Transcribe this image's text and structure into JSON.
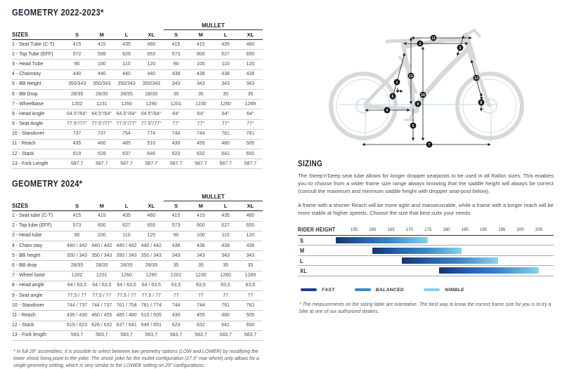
{
  "tables": [
    {
      "title": "GEOMETRY 2022-2023*",
      "mullet_label": "MULLET",
      "sizes_header": "SIZES",
      "size_cols": [
        "S",
        "M",
        "L",
        "XL",
        "S",
        "M",
        "L",
        "XL"
      ],
      "rows": [
        {
          "label": "1 - Seat Tube (C-T)",
          "values": [
            "415",
            "415",
            "435",
            "460",
            "415",
            "415",
            "435",
            "460"
          ]
        },
        {
          "label": "2 - Top Tube (EFF)",
          "values": [
            "572",
            "599",
            "626",
            "653",
            "573",
            "600",
            "627",
            "655"
          ]
        },
        {
          "label": "3 - Head Tube",
          "values": [
            "90",
            "100",
            "110",
            "120",
            "90",
            "100",
            "110",
            "120"
          ]
        },
        {
          "label": "4 - Chainstay",
          "values": [
            "440",
            "440",
            "440",
            "440",
            "438",
            "438",
            "438",
            "438"
          ]
        },
        {
          "label": "5 - BB Height",
          "values": [
            "350/343",
            "350/343",
            "350/343",
            "350/343",
            "343",
            "343",
            "343",
            "343"
          ]
        },
        {
          "label": "6 - BB Drop",
          "values": [
            "28/35",
            "28/35",
            "28/35",
            "28/35",
            "35",
            "35",
            "35",
            "35"
          ]
        },
        {
          "label": "7 - Wheelbase",
          "values": [
            "1202",
            "1231",
            "1260",
            "1290",
            "1201",
            "1230",
            "1260",
            "1289"
          ]
        },
        {
          "label": "8 - Head Angle",
          "values": [
            "64.5°/64°",
            "64.5°/64°",
            "64.5°/64°",
            "64.5°/64°",
            "64°",
            "64°",
            "64°",
            "64°"
          ]
        },
        {
          "label": "9 - Seat Angle",
          "values": [
            "77.5°/77°",
            "77.5°/77°",
            "77.5°/77°",
            "77.5°/77°",
            "77°",
            "77°",
            "77°",
            "77°"
          ]
        },
        {
          "label": "10 - Standover",
          "values": [
            "737",
            "737",
            "754",
            "774",
            "744",
            "744",
            "761",
            "781"
          ]
        },
        {
          "label": "11 - Reach",
          "values": [
            "435",
            "460",
            "485",
            "510",
            "430",
            "455",
            "480",
            "505"
          ]
        },
        {
          "label": "12 - Stack",
          "values": [
            "619",
            "628",
            "637",
            "646",
            "623",
            "632",
            "641",
            "650"
          ]
        },
        {
          "label": "13 - Fork Length",
          "values": [
            "587.7",
            "587.7",
            "587.7",
            "587.7",
            "587.7",
            "587.7",
            "587.7",
            "587.7"
          ]
        }
      ]
    },
    {
      "title": "GEOMETRY 2024*",
      "mullet_label": "MULLET",
      "sizes_header": "SIZES",
      "size_cols": [
        "S",
        "M",
        "L",
        "XL",
        "S",
        "M",
        "L",
        "XL"
      ],
      "rows": [
        {
          "label": "1 - Seat tube (C-T)",
          "values": [
            "415",
            "415",
            "435",
            "460",
            "415",
            "415",
            "435",
            "460"
          ]
        },
        {
          "label": "2 - Top tube (EFF)",
          "values": [
            "573",
            "600",
            "627",
            "655",
            "573",
            "600",
            "627",
            "655"
          ]
        },
        {
          "label": "3 - Head tube",
          "values": [
            "90",
            "100",
            "110",
            "120",
            "90",
            "100",
            "110",
            "120"
          ]
        },
        {
          "label": "4 - Chain stay",
          "values": [
            "440 / 442",
            "440 / 442",
            "440 / 442",
            "440 / 442",
            "438",
            "438",
            "438",
            "438"
          ]
        },
        {
          "label": "5 - BB height",
          "values": [
            "350 / 343",
            "350 / 343",
            "350 / 343",
            "350 / 343",
            "343",
            "343",
            "343",
            "343"
          ]
        },
        {
          "label": "6 - BB drop",
          "values": [
            "28/35",
            "28/35",
            "28/35",
            "28/35",
            "35",
            "35",
            "35",
            "35"
          ]
        },
        {
          "label": "7 - Wheel base",
          "values": [
            "1202",
            "1231",
            "1260",
            "1290",
            "1201",
            "1230",
            "1260",
            "1289"
          ]
        },
        {
          "label": "8 - Head angle",
          "values": [
            "64 / 63,5",
            "64 / 63,5",
            "64 / 63,5",
            "64 / 63,5",
            "63,5",
            "63,5",
            "63,5",
            "63,5"
          ]
        },
        {
          "label": "9 - Seat angle",
          "values": [
            "77,5 / 77",
            "77,5 / 77",
            "77,5 / 77",
            "77,5 / 77",
            "77",
            "77",
            "77",
            "77"
          ]
        },
        {
          "label": "10 - Standover",
          "values": [
            "744 / 737",
            "744 / 737",
            "761 / 754",
            "781 / 774",
            "744",
            "744",
            "761",
            "781"
          ]
        },
        {
          "label": "11 - Reach",
          "values": [
            "435 / 430",
            "460 / 455",
            "485 / 480",
            "510 / 505",
            "430",
            "455",
            "480",
            "505"
          ]
        },
        {
          "label": "12 - Stack",
          "values": [
            "619 / 623",
            "628 / 632",
            "637 / 641",
            "646 / 651",
            "623",
            "632",
            "641",
            "650"
          ]
        },
        {
          "label": "13 - Fork length",
          "values": [
            "583,7",
            "583,7",
            "583,7",
            "583,7",
            "583,7",
            "583,7",
            "583,7",
            "583,7"
          ]
        }
      ]
    }
  ],
  "footnote_left": "* In full 29\" assemblies, it is possible to select between two geometry options (LOW and LOWER) by modifying the lower shock fixing point to the yoke. The shock yoke for the mullet configuration (27.5\" rear wheel) only allows for a single geometry setting, which is very similar to the LOWER setting on 29\" configurations.",
  "sizing": {
    "heading": "SIZING",
    "paragraphs": [
      "The Steep'n'Deep seat tube allows for longer dropper seatposts to be used in all Rallon sizes. This enables you to choose from a wider frame size range always knowing that the saddle height will always be correct (consult the maximum and minimum saddle height with dropper seat-post below).",
      "A frame with a shorter Reach will be more agile and manoeuvrable, while a frame with a longer reach will be more stable at higher speeds. Choose the size that best suits your needs."
    ]
  },
  "chart_data": {
    "type": "bar",
    "title": "RIDER HEIGHT",
    "categories": [
      "S",
      "M",
      "L",
      "XL"
    ],
    "series": [
      {
        "name": "S",
        "range_cm": [
          150,
          175
        ]
      },
      {
        "name": "M",
        "range_cm": [
          160,
          184
        ]
      },
      {
        "name": "L",
        "range_cm": [
          168,
          194
        ]
      },
      {
        "name": "XL",
        "range_cm": [
          178,
          205
        ]
      }
    ],
    "x_ticks": [
      155,
      160,
      165,
      170,
      175,
      180,
      185,
      190,
      195,
      200,
      205
    ],
    "xlim": [
      150,
      207
    ],
    "legend_position": "bottom",
    "legend": [
      {
        "label": "FAST",
        "color": "#1c3e8d"
      },
      {
        "label": "BALANCED",
        "color": "#3c86c6"
      },
      {
        "label": "NIMBLE",
        "color": "#85d2ef"
      }
    ],
    "bar_gradient": [
      "#16346f",
      "#2462ae",
      "#3c86c6",
      "#85d2ef"
    ]
  },
  "footnote_right": "* The measurements on the sizing table are orientative. The best way to know the correct frame size for you is to try a bike at one of our authorized dealers.",
  "diagram": {
    "markers": [
      "1",
      "2",
      "3",
      "4",
      "5",
      "6",
      "7",
      "8",
      "9",
      "10",
      "11",
      "12",
      "13"
    ]
  }
}
